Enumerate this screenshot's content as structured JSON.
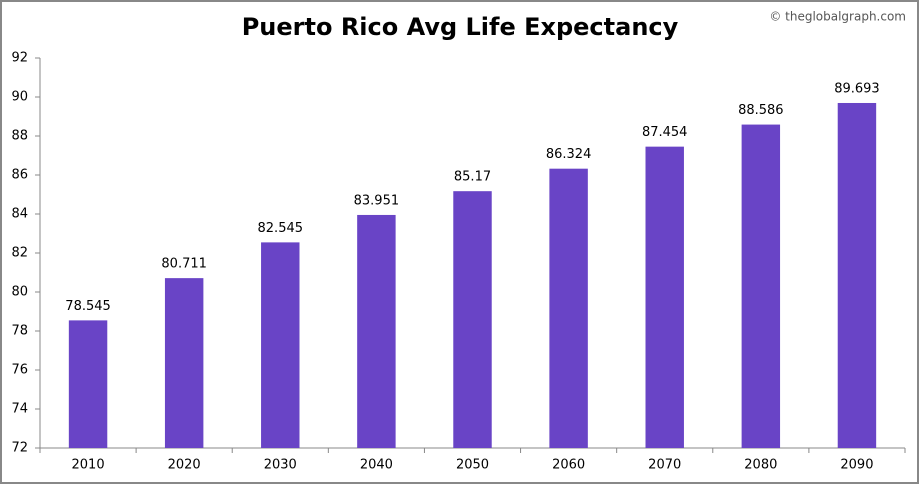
{
  "chart_data": {
    "type": "bar",
    "title": "Puerto Rico Avg Life Expectancy",
    "watermark": "© theglobalgraph.com",
    "categories": [
      "2010",
      "2020",
      "2030",
      "2040",
      "2050",
      "2060",
      "2070",
      "2080",
      "2090"
    ],
    "values": [
      78.545,
      80.711,
      82.545,
      83.951,
      85.17,
      86.324,
      87.454,
      88.586,
      89.693
    ],
    "color": "#6944c6",
    "ylim": [
      72,
      92
    ],
    "yticks": [
      72,
      74,
      76,
      78,
      80,
      82,
      84,
      86,
      88,
      90,
      92
    ],
    "grid": false
  }
}
